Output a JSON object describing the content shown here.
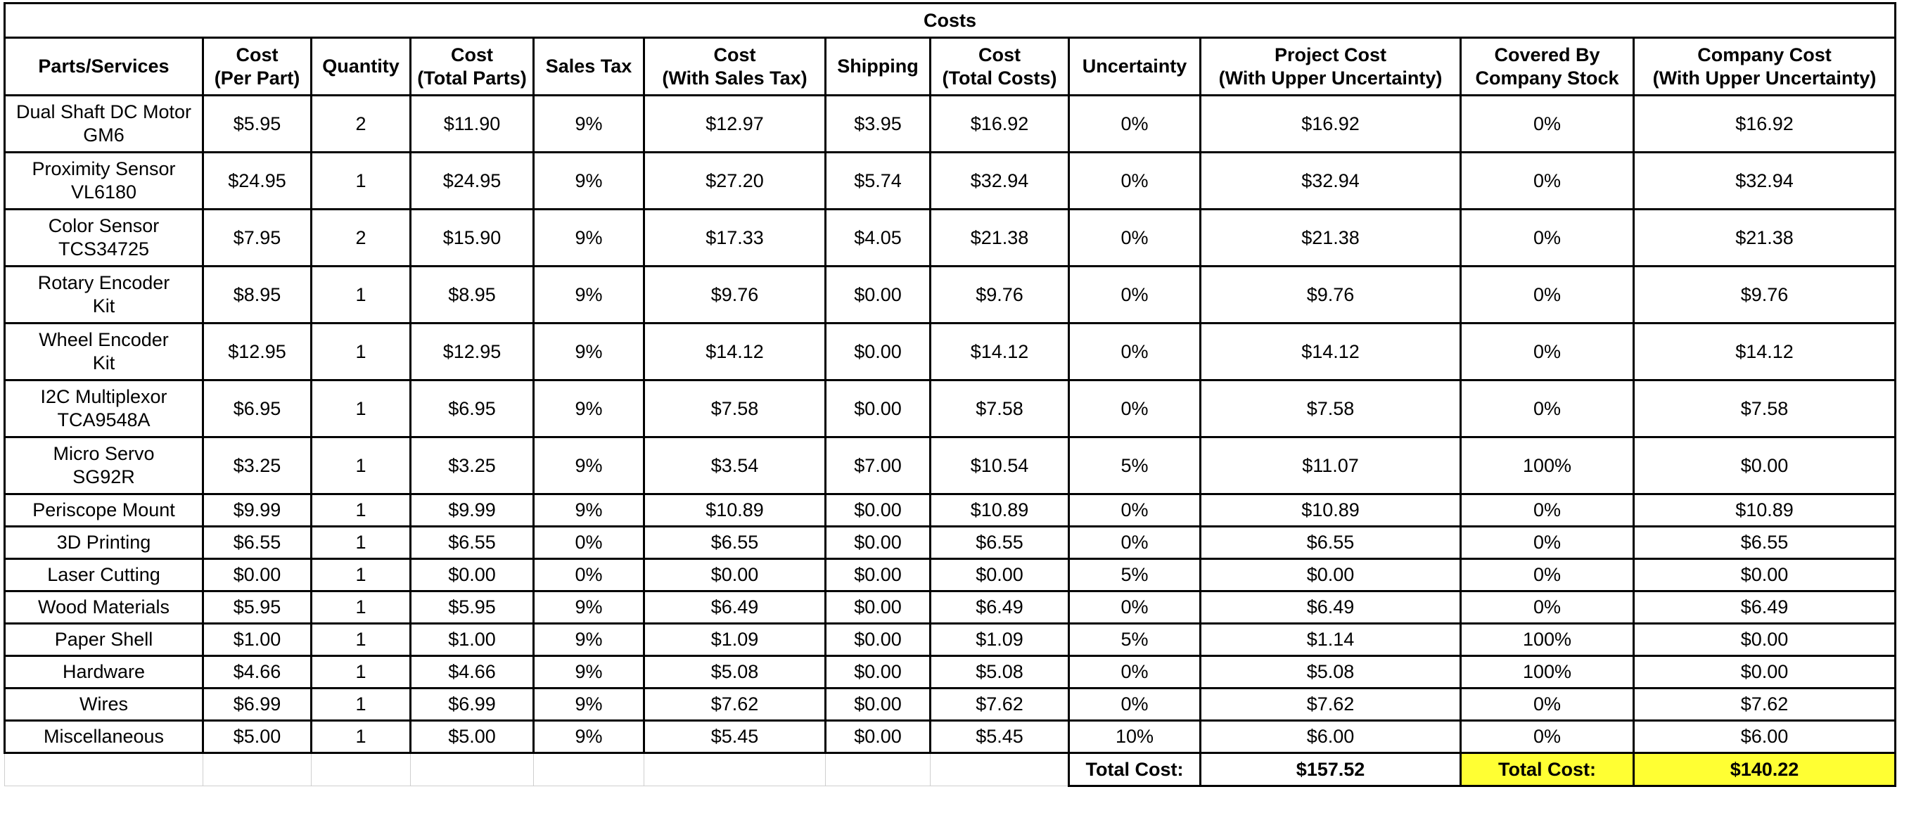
{
  "title": "Costs",
  "headers": [
    [
      "Parts/Services"
    ],
    [
      "Cost",
      "(Per Part)"
    ],
    [
      "Quantity"
    ],
    [
      "Cost",
      "(Total Parts)"
    ],
    [
      "Sales Tax"
    ],
    [
      "Cost",
      "(With Sales Tax)"
    ],
    [
      "Shipping"
    ],
    [
      "Cost",
      "(Total Costs)"
    ],
    [
      "Uncertainty"
    ],
    [
      "Project Cost",
      "(With Upper Uncertainty)"
    ],
    [
      "Covered By",
      "Company Stock"
    ],
    [
      "Company Cost",
      "(With Upper Uncertainty)"
    ]
  ],
  "rows": [
    {
      "name": [
        "Dual Shaft DC Motor",
        "GM6"
      ],
      "cells": [
        "$5.95",
        "2",
        "$11.90",
        "9%",
        "$12.97",
        "$3.95",
        "$16.92",
        "0%",
        "$16.92",
        "0%",
        "$16.92"
      ]
    },
    {
      "name": [
        "Proximity Sensor",
        "VL6180"
      ],
      "cells": [
        "$24.95",
        "1",
        "$24.95",
        "9%",
        "$27.20",
        "$5.74",
        "$32.94",
        "0%",
        "$32.94",
        "0%",
        "$32.94"
      ]
    },
    {
      "name": [
        "Color Sensor",
        "TCS34725"
      ],
      "cells": [
        "$7.95",
        "2",
        "$15.90",
        "9%",
        "$17.33",
        "$4.05",
        "$21.38",
        "0%",
        "$21.38",
        "0%",
        "$21.38"
      ]
    },
    {
      "name": [
        "Rotary Encoder",
        "Kit"
      ],
      "cells": [
        "$8.95",
        "1",
        "$8.95",
        "9%",
        "$9.76",
        "$0.00",
        "$9.76",
        "0%",
        "$9.76",
        "0%",
        "$9.76"
      ]
    },
    {
      "name": [
        "Wheel Encoder",
        "Kit"
      ],
      "cells": [
        "$12.95",
        "1",
        "$12.95",
        "9%",
        "$14.12",
        "$0.00",
        "$14.12",
        "0%",
        "$14.12",
        "0%",
        "$14.12"
      ]
    },
    {
      "name": [
        "I2C Multiplexor",
        "TCA9548A"
      ],
      "cells": [
        "$6.95",
        "1",
        "$6.95",
        "9%",
        "$7.58",
        "$0.00",
        "$7.58",
        "0%",
        "$7.58",
        "0%",
        "$7.58"
      ]
    },
    {
      "name": [
        "Micro Servo",
        "SG92R"
      ],
      "cells": [
        "$3.25",
        "1",
        "$3.25",
        "9%",
        "$3.54",
        "$7.00",
        "$10.54",
        "5%",
        "$11.07",
        "100%",
        "$0.00"
      ]
    },
    {
      "name": [
        "Periscope Mount"
      ],
      "cells": [
        "$9.99",
        "1",
        "$9.99",
        "9%",
        "$10.89",
        "$0.00",
        "$10.89",
        "0%",
        "$10.89",
        "0%",
        "$10.89"
      ]
    },
    {
      "name": [
        "3D Printing"
      ],
      "cells": [
        "$6.55",
        "1",
        "$6.55",
        "0%",
        "$6.55",
        "$0.00",
        "$6.55",
        "0%",
        "$6.55",
        "0%",
        "$6.55"
      ]
    },
    {
      "name": [
        "Laser Cutting"
      ],
      "cells": [
        "$0.00",
        "1",
        "$0.00",
        "0%",
        "$0.00",
        "$0.00",
        "$0.00",
        "5%",
        "$0.00",
        "0%",
        "$0.00"
      ]
    },
    {
      "name": [
        "Wood Materials"
      ],
      "cells": [
        "$5.95",
        "1",
        "$5.95",
        "9%",
        "$6.49",
        "$0.00",
        "$6.49",
        "0%",
        "$6.49",
        "0%",
        "$6.49"
      ]
    },
    {
      "name": [
        "Paper Shell"
      ],
      "cells": [
        "$1.00",
        "1",
        "$1.00",
        "9%",
        "$1.09",
        "$0.00",
        "$1.09",
        "5%",
        "$1.14",
        "100%",
        "$0.00"
      ]
    },
    {
      "name": [
        "Hardware"
      ],
      "cells": [
        "$4.66",
        "1",
        "$4.66",
        "9%",
        "$5.08",
        "$0.00",
        "$5.08",
        "0%",
        "$5.08",
        "100%",
        "$0.00"
      ]
    },
    {
      "name": [
        "Wires"
      ],
      "cells": [
        "$6.99",
        "1",
        "$6.99",
        "9%",
        "$7.62",
        "$0.00",
        "$7.62",
        "0%",
        "$7.62",
        "0%",
        "$7.62"
      ]
    },
    {
      "name": [
        "Miscellaneous"
      ],
      "cells": [
        "$5.00",
        "1",
        "$5.00",
        "9%",
        "$5.45",
        "$0.00",
        "$5.45",
        "10%",
        "$6.00",
        "0%",
        "$6.00"
      ]
    }
  ],
  "totals": {
    "project_label": "Total Cost:",
    "project_value": "$157.52",
    "company_label": "Total Cost:",
    "company_value": "$140.22",
    "highlight_color": "#ffff33"
  }
}
